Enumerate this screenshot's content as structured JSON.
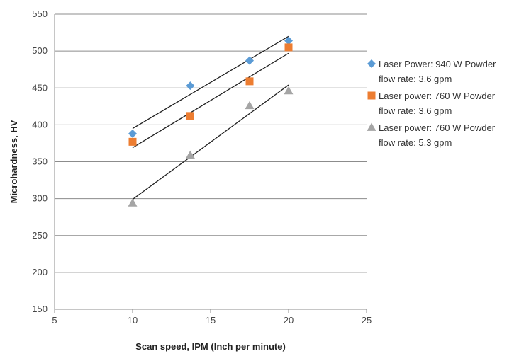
{
  "chart_data": {
    "type": "scatter",
    "title": "",
    "xlabel": "Scan speed, IPM (Inch per minute)",
    "ylabel": "Microhardness, HV",
    "xlim": [
      5,
      25
    ],
    "ylim": [
      150,
      550
    ],
    "xticks": [
      5,
      10,
      15,
      20,
      25
    ],
    "yticks": [
      150,
      200,
      250,
      300,
      350,
      400,
      450,
      500,
      550
    ],
    "grid": "horizontal",
    "legend_position": "right",
    "trendlines": "linear",
    "series": [
      {
        "name_lines": [
          "Laser Power: 940 W Powder",
          "flow rate: 3.6 gpm"
        ],
        "marker": "diamond",
        "color": "#5B9BD5",
        "x": [
          10,
          13.7,
          17.5,
          20
        ],
        "y": [
          388,
          453,
          487,
          514
        ],
        "trend": [
          [
            10,
            395
          ],
          [
            20,
            520
          ]
        ]
      },
      {
        "name_lines": [
          "Laser power: 760 W Powder",
          "flow rate: 3.6 gpm"
        ],
        "marker": "square",
        "color": "#ED7D31",
        "x": [
          10,
          13.7,
          17.5,
          20
        ],
        "y": [
          377,
          412,
          459,
          505
        ],
        "trend": [
          [
            10,
            369
          ],
          [
            20,
            497
          ]
        ]
      },
      {
        "name_lines": [
          "Laser power: 760 W Powder",
          "flow rate: 5.3 gpm"
        ],
        "marker": "triangle",
        "color": "#A5A5A5",
        "x": [
          10,
          13.7,
          17.5,
          20
        ],
        "y": [
          294,
          359,
          426,
          446
        ],
        "trend": [
          [
            10,
            299
          ],
          [
            20,
            454
          ]
        ]
      }
    ]
  }
}
